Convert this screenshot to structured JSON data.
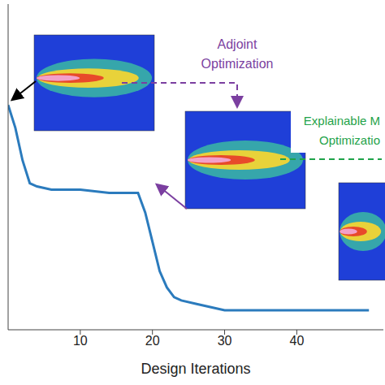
{
  "chart_data": {
    "type": "line",
    "x_label": "Design Iterations",
    "x": [
      0,
      1,
      2,
      3,
      4,
      6,
      10,
      14,
      18,
      19,
      20,
      21,
      22,
      23,
      24,
      26,
      28,
      30,
      35,
      40,
      45,
      50
    ],
    "series": [
      {
        "color": "#2b7bbd",
        "values": [
          0.69,
          0.62,
          0.52,
          0.45,
          0.44,
          0.43,
          0.43,
          0.42,
          0.42,
          0.36,
          0.27,
          0.18,
          0.13,
          0.1,
          0.09,
          0.08,
          0.07,
          0.06,
          0.06,
          0.06,
          0.06,
          0.06
        ]
      }
    ],
    "xlim": [
      0,
      52
    ],
    "xticks": [
      10,
      20,
      30,
      40
    ],
    "ylim": [
      0,
      1
    ],
    "yticks": [
      0.2,
      0.4,
      0.6,
      0.8
    ],
    "tick_labels": "x",
    "annotations": [
      {
        "text": [
          "Adjoint",
          "Optimization"
        ],
        "color": "#7b3fa0"
      },
      {
        "text": [
          "Explainable M",
          "Optimizatio"
        ],
        "color": "#1fa34a"
      }
    ]
  }
}
